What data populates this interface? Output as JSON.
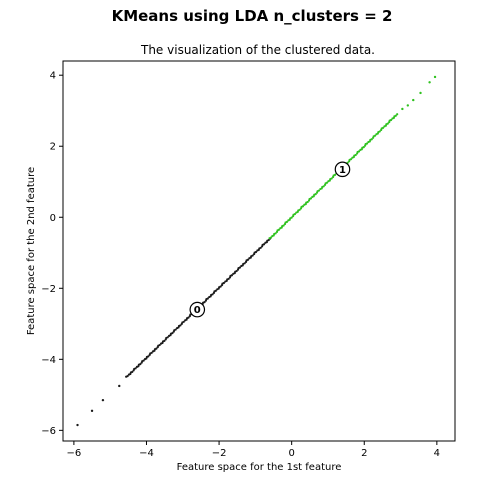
{
  "figure": {
    "suptitle": "KMeans  using LDA  n_clusters = 2"
  },
  "chart_data": {
    "type": "scatter",
    "title": "The visualization of the clustered data.",
    "xlabel": "Feature space for the 1st feature",
    "ylabel": "Feature space for the 2nd feature",
    "xlim": [
      -6.3,
      4.5
    ],
    "ylim": [
      -6.3,
      4.4
    ],
    "xticks": [
      -6,
      -4,
      -2,
      0,
      2,
      4
    ],
    "yticks": [
      -6,
      -4,
      -2,
      0,
      2,
      4
    ],
    "xtick_labels": [
      "−6",
      "−4",
      "−2",
      "0",
      "2",
      "4"
    ],
    "ytick_labels": [
      "−6",
      "−4",
      "−2",
      "0",
      "2",
      "4"
    ],
    "grid": false,
    "series": [
      {
        "cluster": "0",
        "color": "#1a1a1a",
        "segments": [
          {
            "x0": -4.55,
            "y0": -4.5,
            "x1": -0.6,
            "y1": -0.6
          }
        ],
        "isolated_points": [
          {
            "x": -5.9,
            "y": -5.85
          },
          {
            "x": -5.5,
            "y": -5.45
          },
          {
            "x": -5.2,
            "y": -5.15
          },
          {
            "x": -4.75,
            "y": -4.75
          }
        ]
      },
      {
        "cluster": "1",
        "color": "#2fc21f",
        "segments": [
          {
            "x0": -0.6,
            "y0": -0.6,
            "x1": 2.9,
            "y1": 2.9
          }
        ],
        "isolated_points": [
          {
            "x": 3.05,
            "y": 3.05
          },
          {
            "x": 3.2,
            "y": 3.15
          },
          {
            "x": 3.35,
            "y": 3.3
          },
          {
            "x": 3.55,
            "y": 3.5
          },
          {
            "x": 3.8,
            "y": 3.8
          },
          {
            "x": 3.95,
            "y": 3.95
          }
        ]
      }
    ],
    "centroids": [
      {
        "label": "0",
        "x": -2.6,
        "y": -2.6
      },
      {
        "label": "1",
        "x": 1.4,
        "y": 1.35
      }
    ]
  }
}
